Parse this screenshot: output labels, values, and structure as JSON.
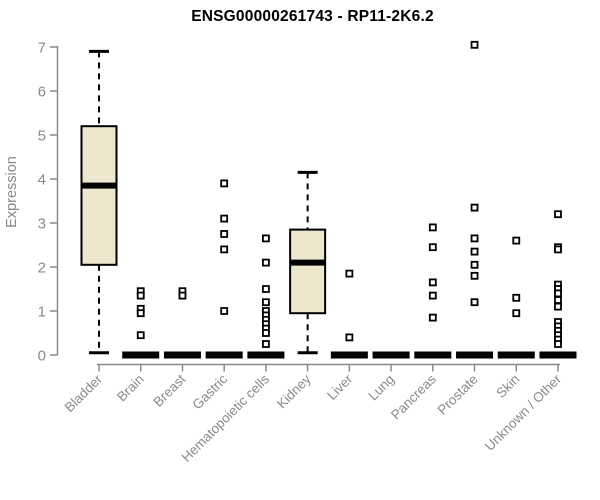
{
  "chart_data": {
    "type": "boxplot",
    "title": "ENSG00000261743 - RP11-2K6.2",
    "ylabel": "Expression",
    "xlabel": "",
    "ylim": [
      0,
      7
    ],
    "yticks": [
      0,
      1,
      2,
      3,
      4,
      5,
      6,
      7
    ],
    "grid": false,
    "legend": "none",
    "categories": [
      "Bladder",
      "Brain",
      "Breast",
      "Gastric",
      "Hematopoietic cells",
      "Kidney",
      "Liver",
      "Lung",
      "Pancreas",
      "Prostate",
      "Skin",
      "Unknown / Other"
    ],
    "boxes": [
      {
        "category": "Bladder",
        "whisker_low": 0.05,
        "q1": 2.05,
        "median": 3.85,
        "q3": 5.2,
        "whisker_high": 6.9,
        "outliers": []
      },
      {
        "category": "Brain",
        "whisker_low": 0,
        "q1": 0,
        "median": 0,
        "q3": 0,
        "whisker_high": 0,
        "outliers": [
          1.45,
          1.35,
          1.05,
          0.95,
          0.45
        ]
      },
      {
        "category": "Breast",
        "whisker_low": 0,
        "q1": 0,
        "median": 0,
        "q3": 0,
        "whisker_high": 0,
        "outliers": [
          1.45,
          1.35
        ]
      },
      {
        "category": "Gastric",
        "whisker_low": 0,
        "q1": 0,
        "median": 0,
        "q3": 0,
        "whisker_high": 0,
        "outliers": [
          3.9,
          3.1,
          2.75,
          2.4,
          1.0
        ]
      },
      {
        "category": "Hematopoietic cells",
        "whisker_low": 0,
        "q1": 0,
        "median": 0,
        "q3": 0,
        "whisker_high": 0,
        "outliers": [
          2.65,
          2.1,
          1.5,
          1.2,
          1.0,
          0.9,
          0.8,
          0.7,
          0.6,
          0.5,
          0.25
        ]
      },
      {
        "category": "Kidney",
        "whisker_low": 0.05,
        "q1": 0.95,
        "median": 2.1,
        "q3": 2.85,
        "whisker_high": 4.15,
        "outliers": []
      },
      {
        "category": "Liver",
        "whisker_low": 0,
        "q1": 0,
        "median": 0,
        "q3": 0,
        "whisker_high": 0,
        "outliers": [
          1.85,
          0.4
        ]
      },
      {
        "category": "Lung",
        "whisker_low": 0,
        "q1": 0,
        "median": 0,
        "q3": 0,
        "whisker_high": 0,
        "outliers": []
      },
      {
        "category": "Pancreas",
        "whisker_low": 0,
        "q1": 0,
        "median": 0,
        "q3": 0,
        "whisker_high": 0,
        "outliers": [
          2.9,
          2.45,
          1.65,
          1.35,
          0.85
        ]
      },
      {
        "category": "Prostate",
        "whisker_low": 0,
        "q1": 0,
        "median": 0,
        "q3": 0,
        "whisker_high": 0,
        "outliers": [
          7.05,
          3.35,
          2.65,
          2.35,
          2.05,
          1.8,
          1.2
        ]
      },
      {
        "category": "Skin",
        "whisker_low": 0,
        "q1": 0,
        "median": 0,
        "q3": 0,
        "whisker_high": 0,
        "outliers": [
          2.6,
          1.3,
          0.95
        ]
      },
      {
        "category": "Unknown / Other",
        "whisker_low": 0,
        "q1": 0,
        "median": 0,
        "q3": 0,
        "whisker_high": 0,
        "outliers": [
          3.2,
          2.45,
          2.4,
          1.6,
          1.5,
          1.4,
          1.25,
          1.1,
          0.75,
          0.65,
          0.55,
          0.45,
          0.35,
          0.25
        ]
      }
    ],
    "colors": {
      "box_fill": "#EDE8CD",
      "box_border": "#000000",
      "median": "#000000",
      "whisker": "#000000",
      "outlier_stroke": "#000000",
      "outlier_fill": "#FFFFFF",
      "axis": "#8A8A8A",
      "tick_label": "#8A8A8A",
      "title": "#000000"
    }
  }
}
